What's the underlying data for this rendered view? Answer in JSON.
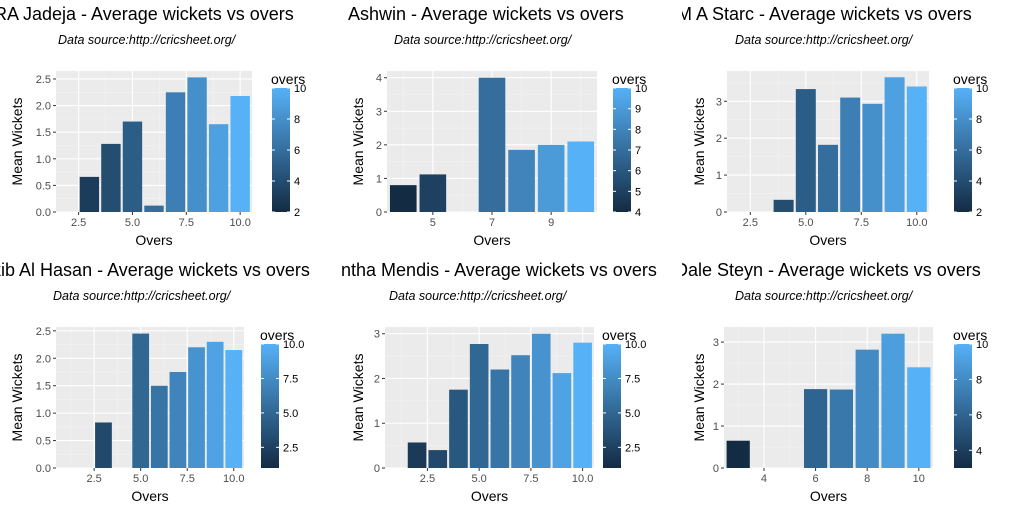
{
  "chart_data": [
    {
      "type": "bar",
      "title": "RA Jadeja - Average wickets vs overs",
      "subtitle": "Data source:http://cricsheet.org/",
      "xlabel": "Overs",
      "ylabel": "Mean Wickets",
      "xlim": [
        1.45,
        10.55
      ],
      "ylim": [
        0,
        2.65
      ],
      "xticks": [
        2.5,
        5.0,
        7.5,
        10.0
      ],
      "xtick_labels": [
        "2.5",
        "5.0",
        "7.5",
        "10.0"
      ],
      "yticks": [
        0,
        0.5,
        1.0,
        1.5,
        2.0,
        2.5
      ],
      "ytick_labels": [
        "0.0",
        "0.5",
        "1.0",
        "1.5",
        "2.0",
        "2.5"
      ],
      "x": [
        3,
        4,
        5,
        6,
        7,
        8,
        9,
        10
      ],
      "values": [
        0.66,
        1.28,
        1.7,
        0.12,
        2.25,
        2.53,
        1.65,
        2.18
      ],
      "legend": {
        "title": "overs",
        "min": 2,
        "max": 10,
        "ticks": [
          2,
          4,
          6,
          8,
          10
        ],
        "tick_labels": [
          "2",
          "4",
          "6",
          "8",
          "10"
        ]
      }
    },
    {
      "type": "bar",
      "title": "Ashwin - Average wickets vs overs",
      "subtitle": "Data source:http://cricsheet.org/",
      "xlabel": "Overs",
      "ylabel": "Mean Wickets",
      "xlim": [
        3.45,
        10.55
      ],
      "ylim": [
        0,
        4.2
      ],
      "xticks": [
        5,
        7,
        9
      ],
      "xtick_labels": [
        "5",
        "7",
        "9"
      ],
      "yticks": [
        0,
        1,
        2,
        3,
        4
      ],
      "ytick_labels": [
        "0",
        "1",
        "2",
        "3",
        "4"
      ],
      "x": [
        4,
        5,
        7,
        8,
        9,
        10
      ],
      "values": [
        0.8,
        1.12,
        4.0,
        1.85,
        2.0,
        2.1
      ],
      "legend": {
        "title": "overs",
        "min": 4,
        "max": 10,
        "ticks": [
          4,
          5,
          6,
          7,
          8,
          9,
          10
        ],
        "tick_labels": [
          "4",
          "5",
          "6",
          "7",
          "8",
          "9",
          "10"
        ]
      }
    },
    {
      "type": "bar",
      "title": "M A Starc - Average wickets vs overs",
      "subtitle": "Data source:http://cricsheet.org/",
      "xlabel": "Overs",
      "ylabel": "Mean Wickets",
      "xlim": [
        1.45,
        10.55
      ],
      "ylim": [
        0,
        3.82
      ],
      "xticks": [
        2.5,
        5.0,
        7.5,
        10.0
      ],
      "xtick_labels": [
        "2.5",
        "5.0",
        "7.5",
        "10.0"
      ],
      "yticks": [
        0,
        1,
        2,
        3
      ],
      "ytick_labels": [
        "0",
        "1",
        "2",
        "3"
      ],
      "x": [
        2,
        3,
        4,
        5,
        6,
        7,
        8,
        9,
        10
      ],
      "values": [
        0,
        0,
        0.33,
        3.33,
        1.82,
        3.1,
        2.93,
        3.65,
        3.4
      ],
      "legend": {
        "title": "overs",
        "min": 2,
        "max": 10,
        "ticks": [
          2,
          4,
          6,
          8,
          10
        ],
        "tick_labels": [
          "2",
          "4",
          "6",
          "8",
          "10"
        ]
      }
    },
    {
      "type": "bar",
      "title": "Shakib Al Hasan - Average wickets vs overs",
      "subtitle": "Data source:http://cricsheet.org/",
      "xlabel": "Overs",
      "ylabel": "Mean Wickets",
      "xlim": [
        0.45,
        10.55
      ],
      "ylim": [
        0,
        2.57
      ],
      "xticks": [
        2.5,
        5.0,
        7.5,
        10.0
      ],
      "xtick_labels": [
        "2.5",
        "5.0",
        "7.5",
        "10.0"
      ],
      "yticks": [
        0,
        0.5,
        1.0,
        1.5,
        2.0,
        2.5
      ],
      "ytick_labels": [
        "0.0",
        "0.5",
        "1.0",
        "1.5",
        "2.0",
        "2.5"
      ],
      "x": [
        1,
        2,
        3,
        4,
        5,
        6,
        7,
        8,
        9,
        10
      ],
      "values": [
        0,
        0,
        0.83,
        0,
        2.45,
        1.5,
        1.75,
        2.2,
        2.3,
        2.15
      ],
      "legend": {
        "title": "overs",
        "min": 1,
        "max": 10,
        "ticks": [
          2.5,
          5.0,
          7.5,
          10.0
        ],
        "tick_labels": [
          "2.5",
          "5.0",
          "7.5",
          "10.0"
        ]
      }
    },
    {
      "type": "bar",
      "title": "Ajantha Mendis - Average wickets vs overs",
      "subtitle": "Data source:http://cricsheet.org/",
      "xlabel": "Overs",
      "ylabel": "Mean Wickets",
      "xlim": [
        0.45,
        10.55
      ],
      "ylim": [
        0,
        3.15
      ],
      "xticks": [
        2.5,
        5.0,
        7.5,
        10.0
      ],
      "xtick_labels": [
        "2.5",
        "5.0",
        "7.5",
        "10.0"
      ],
      "yticks": [
        0,
        1,
        2,
        3
      ],
      "ytick_labels": [
        "0",
        "1",
        "2",
        "3"
      ],
      "x": [
        1,
        2,
        3,
        4,
        5,
        6,
        7,
        8,
        9,
        10
      ],
      "values": [
        0,
        0.57,
        0.4,
        1.75,
        2.77,
        2.2,
        2.52,
        3.0,
        2.12,
        2.8
      ],
      "legend": {
        "title": "overs",
        "min": 1,
        "max": 10,
        "ticks": [
          2.5,
          5.0,
          7.5,
          10.0
        ],
        "tick_labels": [
          "2.5",
          "5.0",
          "7.5",
          "10.0"
        ]
      }
    },
    {
      "type": "bar",
      "title": "Dale Steyn - Average wickets vs overs",
      "subtitle": "Data source:http://cricsheet.org/",
      "xlabel": "Overs",
      "ylabel": "Mean Wickets",
      "xlim": [
        2.45,
        10.55
      ],
      "ylim": [
        0,
        3.36
      ],
      "xticks": [
        4,
        6,
        8,
        10
      ],
      "xtick_labels": [
        "4",
        "6",
        "8",
        "10"
      ],
      "yticks": [
        0,
        1,
        2,
        3
      ],
      "ytick_labels": [
        "0",
        "1",
        "2",
        "3"
      ],
      "x": [
        3,
        4,
        5,
        6,
        7,
        8,
        9,
        10
      ],
      "values": [
        0.65,
        0,
        0,
        1.88,
        1.87,
        2.82,
        3.2,
        2.4
      ],
      "legend": {
        "title": "overs",
        "min": 3,
        "max": 10,
        "ticks": [
          4,
          6,
          8,
          10
        ],
        "tick_labels": [
          "4",
          "6",
          "8",
          "10"
        ]
      }
    }
  ],
  "colors": {
    "panel_background": "#ebebeb",
    "grid_major": "#ffffff",
    "grid_minor": "#f3f3f3",
    "gradient_low": "#132b43",
    "gradient_high": "#56b1f7",
    "axis_text": "#4d4d4d",
    "tick": "#333333"
  }
}
